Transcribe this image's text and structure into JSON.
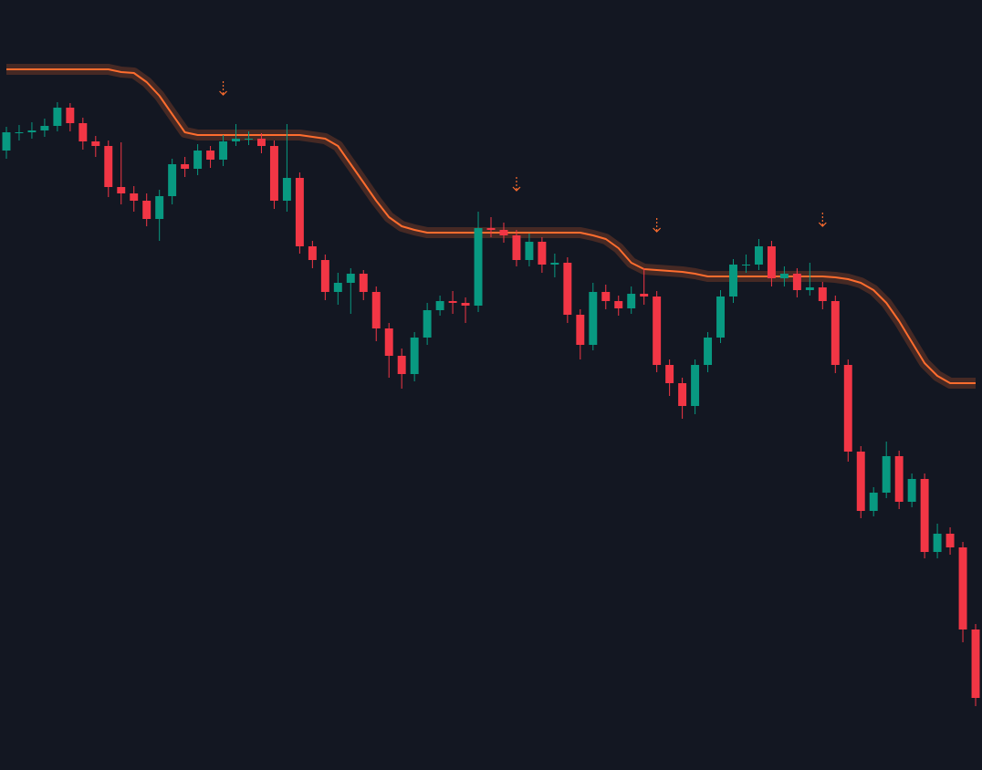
{
  "chart_data": {
    "type": "candlestick",
    "xlim": [
      -0.5,
      76.5
    ],
    "ylim": [
      0,
      844
    ],
    "up_color": "#089981",
    "down_color": "#f23645",
    "open": [
      679,
      699,
      699,
      701,
      706,
      726,
      709,
      689,
      684,
      639,
      632,
      624,
      604,
      629,
      664,
      659,
      679,
      669,
      689,
      692,
      692,
      684,
      624,
      649,
      574,
      559,
      524,
      534,
      544,
      524,
      484,
      454,
      434,
      474,
      504,
      514,
      512,
      509,
      594,
      592,
      586,
      559,
      579,
      554,
      556,
      499,
      466,
      524,
      514,
      506,
      522,
      519,
      444,
      424,
      399,
      444,
      474,
      519,
      554,
      554,
      574,
      539,
      544,
      526,
      529,
      514,
      444,
      349,
      284,
      304,
      344,
      294,
      319,
      239,
      259,
      244,
      154
    ],
    "high": [
      705,
      707,
      710,
      714,
      732,
      731,
      715,
      695,
      690,
      688,
      640,
      632,
      636,
      670,
      672,
      686,
      684,
      696,
      708,
      700,
      698,
      690,
      708,
      655,
      580,
      565,
      545,
      550,
      548,
      530,
      490,
      462,
      480,
      512,
      520,
      525,
      518,
      612,
      606,
      600,
      592,
      588,
      584,
      566,
      562,
      505,
      534,
      532,
      520,
      530,
      550,
      525,
      450,
      430,
      450,
      480,
      526,
      560,
      565,
      582,
      580,
      552,
      550,
      556,
      535,
      520,
      450,
      355,
      310,
      360,
      350,
      325,
      325,
      270,
      266,
      250,
      160
    ],
    "low": [
      670,
      690,
      692,
      694,
      700,
      700,
      680,
      672,
      628,
      620,
      612,
      596,
      580,
      620,
      650,
      652,
      660,
      662,
      684,
      685,
      676,
      615,
      612,
      566,
      550,
      515,
      510,
      500,
      515,
      470,
      430,
      418,
      426,
      466,
      498,
      500,
      490,
      502,
      584,
      578,
      552,
      552,
      545,
      540,
      490,
      450,
      460,
      505,
      498,
      500,
      510,
      436,
      410,
      385,
      390,
      436,
      468,
      512,
      545,
      548,
      530,
      530,
      518,
      520,
      505,
      435,
      338,
      276,
      278,
      298,
      286,
      288,
      232,
      232,
      236,
      140,
      70
    ],
    "close": [
      699,
      699,
      701,
      706,
      726,
      709,
      689,
      684,
      639,
      632,
      624,
      604,
      629,
      664,
      659,
      679,
      669,
      689,
      692,
      692,
      684,
      624,
      649,
      574,
      559,
      524,
      534,
      544,
      524,
      484,
      454,
      434,
      474,
      504,
      514,
      512,
      509,
      594,
      592,
      586,
      559,
      579,
      554,
      556,
      499,
      466,
      524,
      514,
      506,
      522,
      519,
      444,
      424,
      399,
      444,
      474,
      519,
      554,
      554,
      574,
      539,
      544,
      526,
      529,
      514,
      444,
      349,
      284,
      304,
      344,
      294,
      319,
      239,
      259,
      244,
      154,
      79
    ],
    "band": {
      "color": "#ff6d2e",
      "values": [
        768,
        768,
        768,
        768,
        768,
        768,
        768,
        768,
        768,
        765,
        764,
        754,
        739,
        719,
        699,
        696,
        696,
        696,
        696,
        696,
        696,
        696,
        696,
        696,
        694,
        692,
        684,
        664,
        644,
        624,
        606,
        596,
        592,
        589,
        589,
        589,
        589,
        589,
        589,
        589,
        589,
        589,
        589,
        589,
        589,
        589,
        586,
        582,
        572,
        556,
        549,
        548,
        547,
        546,
        544,
        541,
        541,
        541,
        541,
        541,
        541,
        541,
        541,
        541,
        541,
        540,
        538,
        534,
        526,
        512,
        492,
        469,
        446,
        432,
        424,
        424,
        424
      ]
    },
    "markers": {
      "color": "#ff6d2e",
      "x": [
        17,
        40,
        51,
        64
      ],
      "values": [
        741,
        636,
        591,
        597
      ]
    }
  }
}
